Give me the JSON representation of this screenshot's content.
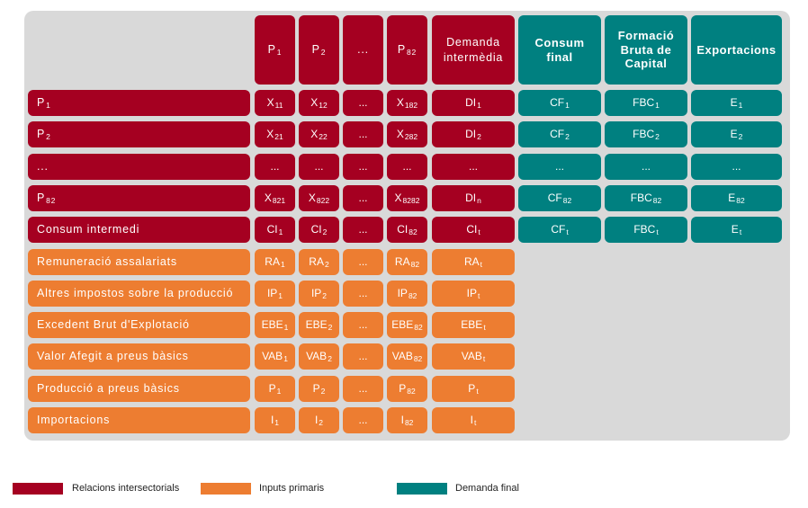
{
  "colors": {
    "intersectorial": "#a50021",
    "primary": "#ed7d31",
    "final": "#008080",
    "background": "#d9d9d9"
  },
  "header": [
    {
      "text": "P",
      "sub": "1"
    },
    {
      "text": "P",
      "sub": "2"
    },
    {
      "text": "...",
      "sub": ""
    },
    {
      "text": "P",
      "sub": "82"
    },
    {
      "text": "Demanda intermèdia",
      "sub": ""
    },
    {
      "text": "Consum final",
      "sub": ""
    },
    {
      "text": "Formació Bruta de Capital",
      "sub": ""
    },
    {
      "text": "Exportacions",
      "sub": ""
    }
  ],
  "rows": [
    {
      "label": {
        "text": "P",
        "sub": "1"
      },
      "type": "intersectorial",
      "cells": [
        {
          "t": "X",
          "s": "11"
        },
        {
          "t": "X",
          "s": "12"
        },
        {
          "t": "...",
          "s": ""
        },
        {
          "t": "X",
          "s": "182"
        },
        {
          "t": "DI",
          "s": "1"
        },
        {
          "t": "CF",
          "s": "1"
        },
        {
          "t": "FBC",
          "s": "1"
        },
        {
          "t": "E",
          "s": "1"
        }
      ]
    },
    {
      "label": {
        "text": "P",
        "sub": "2"
      },
      "type": "intersectorial",
      "cells": [
        {
          "t": "X",
          "s": "21"
        },
        {
          "t": "X",
          "s": "22"
        },
        {
          "t": "...",
          "s": ""
        },
        {
          "t": "X",
          "s": "282"
        },
        {
          "t": "DI",
          "s": "2"
        },
        {
          "t": "CF",
          "s": "2"
        },
        {
          "t": "FBC",
          "s": "2"
        },
        {
          "t": "E",
          "s": "2"
        }
      ]
    },
    {
      "label": {
        "text": "...",
        "sub": ""
      },
      "type": "intersectorial",
      "cells": [
        {
          "t": "...",
          "s": ""
        },
        {
          "t": "...",
          "s": ""
        },
        {
          "t": "...",
          "s": ""
        },
        {
          "t": "...",
          "s": ""
        },
        {
          "t": "...",
          "s": ""
        },
        {
          "t": "...",
          "s": ""
        },
        {
          "t": "...",
          "s": ""
        },
        {
          "t": "...",
          "s": ""
        }
      ]
    },
    {
      "label": {
        "text": "P",
        "sub": "82"
      },
      "type": "intersectorial",
      "cells": [
        {
          "t": "X",
          "s": "821"
        },
        {
          "t": "X",
          "s": "822"
        },
        {
          "t": "...",
          "s": ""
        },
        {
          "t": "X",
          "s": "8282"
        },
        {
          "t": "DI",
          "s": "n"
        },
        {
          "t": "CF",
          "s": "82"
        },
        {
          "t": "FBC",
          "s": "82"
        },
        {
          "t": "E",
          "s": "82"
        }
      ]
    },
    {
      "label": {
        "text": "Consum intermedi",
        "sub": ""
      },
      "type": "intersectorial",
      "cells": [
        {
          "t": "CI",
          "s": "1"
        },
        {
          "t": "CI",
          "s": "2"
        },
        {
          "t": "...",
          "s": ""
        },
        {
          "t": "CI",
          "s": "82"
        },
        {
          "t": "CI",
          "s": "t"
        },
        {
          "t": "CF",
          "s": "t"
        },
        {
          "t": "FBC",
          "s": "t"
        },
        {
          "t": "E",
          "s": "t"
        }
      ]
    },
    {
      "label": {
        "text": "Remuneració assalariats",
        "sub": ""
      },
      "type": "primary",
      "cells": [
        {
          "t": "RA",
          "s": "1"
        },
        {
          "t": "RA",
          "s": "2"
        },
        {
          "t": "...",
          "s": ""
        },
        {
          "t": "RA",
          "s": "82"
        },
        {
          "t": "RA",
          "s": "t"
        }
      ]
    },
    {
      "label": {
        "text": "Altres impostos sobre la producció",
        "sub": ""
      },
      "type": "primary",
      "cells": [
        {
          "t": "IP",
          "s": "1"
        },
        {
          "t": "IP",
          "s": "2"
        },
        {
          "t": "...",
          "s": ""
        },
        {
          "t": "IP",
          "s": "82"
        },
        {
          "t": "IP",
          "s": "t"
        }
      ]
    },
    {
      "label": {
        "text": "Excedent Brut d'Explotació",
        "sub": ""
      },
      "type": "primary",
      "cells": [
        {
          "t": "EBE",
          "s": "1"
        },
        {
          "t": "EBE",
          "s": "2"
        },
        {
          "t": "...",
          "s": ""
        },
        {
          "t": "EBE",
          "s": "82"
        },
        {
          "t": "EBE",
          "s": "t"
        }
      ]
    },
    {
      "label": {
        "text": "Valor Afegit a preus bàsics",
        "sub": ""
      },
      "type": "primary",
      "cells": [
        {
          "t": "VAB",
          "s": "1"
        },
        {
          "t": "VAB",
          "s": "2"
        },
        {
          "t": "...",
          "s": ""
        },
        {
          "t": "VAB",
          "s": "82"
        },
        {
          "t": "VAB",
          "s": "t"
        }
      ]
    },
    {
      "label": {
        "text": "Producció a preus bàsics",
        "sub": ""
      },
      "type": "primary",
      "cells": [
        {
          "t": "P",
          "s": "1"
        },
        {
          "t": "P",
          "s": "2"
        },
        {
          "t": "...",
          "s": ""
        },
        {
          "t": "P",
          "s": "82"
        },
        {
          "t": "P",
          "s": "t"
        }
      ]
    },
    {
      "label": {
        "text": "Importacions",
        "sub": ""
      },
      "type": "primary",
      "cells": [
        {
          "t": "I",
          "s": "1"
        },
        {
          "t": "I",
          "s": "2"
        },
        {
          "t": "...",
          "s": ""
        },
        {
          "t": "I",
          "s": "82"
        },
        {
          "t": "I",
          "s": "t"
        }
      ]
    }
  ],
  "legend": [
    {
      "label": "Relacions intersectorials",
      "type": "intersectorial"
    },
    {
      "label": "Inputs primaris",
      "type": "primary"
    },
    {
      "label": "Demanda final",
      "type": "final"
    }
  ]
}
